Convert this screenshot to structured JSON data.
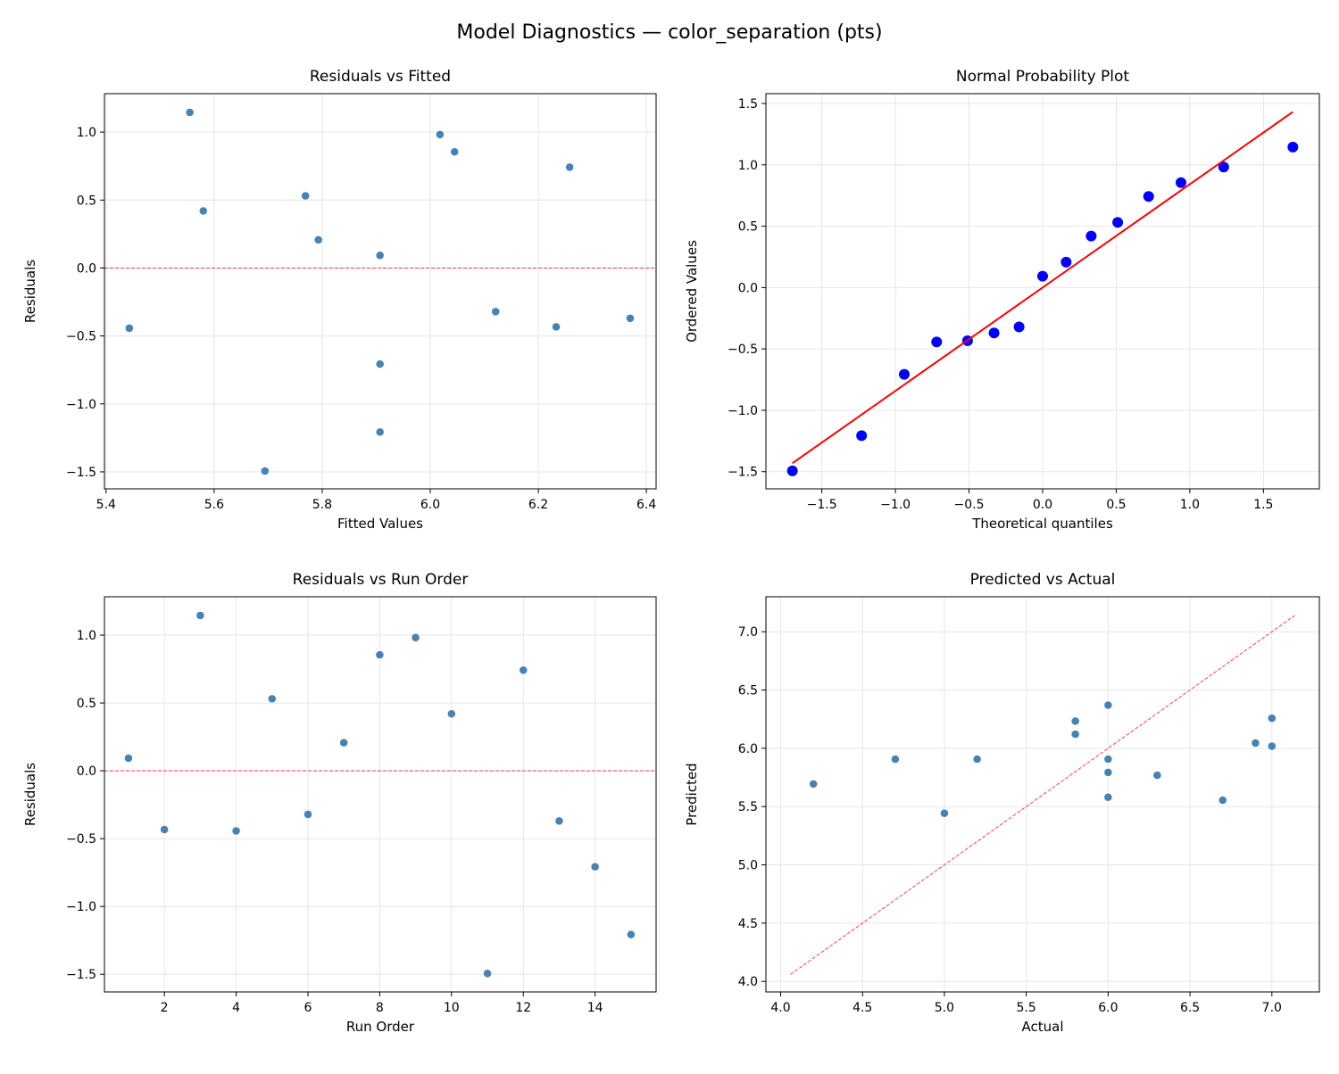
{
  "title": "Model Diagnostics — color_separation (pts)",
  "colors": {
    "points": "#4682b4",
    "qq_points": "#0000ff",
    "qq_line": "#ff0000",
    "ref_line": "#ff0000",
    "grid": "#e6e6e6"
  },
  "chart_data": [
    {
      "type": "scatter",
      "title": "Residuals vs Fitted",
      "xlabel": "Fitted Values",
      "ylabel": "Residuals",
      "xlim": [
        5.397,
        6.418
      ],
      "ylim": [
        -1.625,
        1.283
      ],
      "xticks": [
        "5.4",
        "5.6",
        "5.8",
        "6.0",
        "6.2",
        "6.4"
      ],
      "yticks": [
        "−1.5",
        "−1.0",
        "−0.5",
        "0.0",
        "0.5",
        "1.0"
      ],
      "grid": true,
      "x": [
        5.907,
        6.233,
        5.555,
        5.443,
        5.769,
        6.121,
        5.793,
        6.045,
        6.018,
        5.58,
        5.694,
        6.258,
        6.37,
        5.907,
        5.907
      ],
      "y": [
        0.093,
        -0.433,
        1.145,
        -0.443,
        0.531,
        -0.321,
        0.207,
        0.855,
        0.982,
        0.42,
        -1.494,
        0.742,
        -0.37,
        -0.707,
        -1.207
      ],
      "reference_line": {
        "type": "horizontal",
        "y": 0,
        "style": "dashed"
      }
    },
    {
      "type": "scatter",
      "title": "Normal Probability Plot",
      "xlabel": "Theoretical quantiles",
      "ylabel": "Ordered Values",
      "xlim": [
        -1.88,
        1.88
      ],
      "ylim": [
        -1.64,
        1.58
      ],
      "xticks": [
        "−1.5",
        "−1.0",
        "−0.5",
        "0.0",
        "0.5",
        "1.0",
        "1.5"
      ],
      "yticks": [
        "−1.5",
        "−1.0",
        "−0.5",
        "0.0",
        "0.5",
        "1.0",
        "1.5"
      ],
      "grid": true,
      "x": [
        -1.7,
        -1.23,
        -0.94,
        -0.72,
        -0.51,
        -0.33,
        -0.16,
        0.0,
        0.16,
        0.33,
        0.51,
        0.72,
        0.94,
        1.23,
        1.7
      ],
      "y": [
        -1.494,
        -1.207,
        -0.707,
        -0.443,
        -0.433,
        -0.37,
        -0.321,
        0.093,
        0.207,
        0.42,
        0.531,
        0.742,
        0.855,
        0.982,
        1.145
      ],
      "fit_line": {
        "slope": 0.842,
        "intercept": 0.0,
        "style": "solid"
      }
    },
    {
      "type": "scatter",
      "title": "Residuals vs Run Order",
      "xlabel": "Run Order",
      "ylabel": "Residuals",
      "xlim": [
        0.33,
        15.7
      ],
      "ylim": [
        -1.63,
        1.283
      ],
      "xticks": [
        "2",
        "4",
        "6",
        "8",
        "10",
        "12",
        "14"
      ],
      "yticks": [
        "−1.5",
        "−1.0",
        "−0.5",
        "0.0",
        "0.5",
        "1.0"
      ],
      "grid": true,
      "x": [
        1,
        2,
        3,
        4,
        5,
        6,
        7,
        8,
        9,
        10,
        11,
        12,
        13,
        14,
        15
      ],
      "y": [
        0.093,
        -0.433,
        1.145,
        -0.443,
        0.531,
        -0.321,
        0.207,
        0.855,
        0.982,
        0.42,
        -1.494,
        0.742,
        -0.37,
        -0.707,
        -1.207
      ],
      "reference_line": {
        "type": "horizontal",
        "y": 0,
        "style": "dashed"
      }
    },
    {
      "type": "scatter",
      "title": "Predicted vs Actual",
      "xlabel": "Actual",
      "ylabel": "Predicted",
      "xlim": [
        3.91,
        7.29
      ],
      "ylim": [
        3.91,
        7.3
      ],
      "xticks": [
        "4.0",
        "4.5",
        "5.0",
        "5.5",
        "6.0",
        "6.5",
        "7.0"
      ],
      "yticks": [
        "4.0",
        "4.5",
        "5.0",
        "5.5",
        "6.0",
        "6.5",
        "7.0"
      ],
      "grid": true,
      "x": [
        6.0,
        5.8,
        6.7,
        5.0,
        6.3,
        5.8,
        6.0,
        6.9,
        7.0,
        6.0,
        4.2,
        7.0,
        6.0,
        5.2,
        4.7
      ],
      "y": [
        5.907,
        6.233,
        5.555,
        5.443,
        5.769,
        6.121,
        5.793,
        6.045,
        6.018,
        5.58,
        5.694,
        6.258,
        6.37,
        5.907,
        5.907
      ],
      "reference_line": {
        "type": "diagonal",
        "from": 4.06,
        "to": 7.14,
        "style": "dashed"
      }
    }
  ]
}
